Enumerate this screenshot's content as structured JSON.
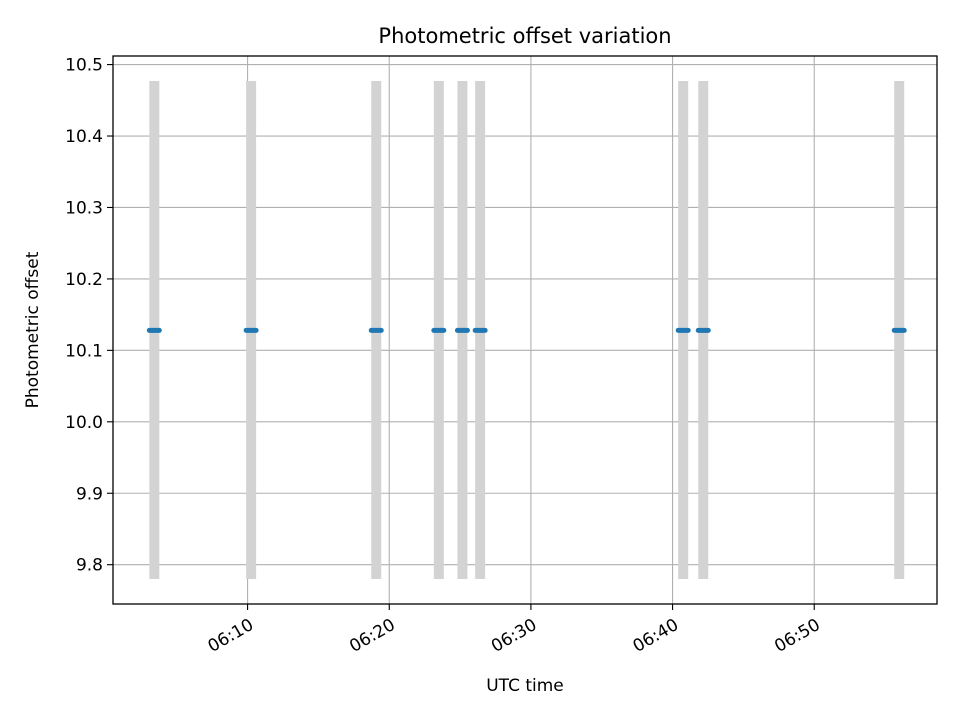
{
  "chart_data": {
    "type": "scatter",
    "title": "Photometric offset variation",
    "xlabel": "UTC time",
    "ylabel": "Photometric offset",
    "x_type": "time",
    "xlim": [
      "06:00:30",
      "06:58:40"
    ],
    "ylim": [
      9.745,
      10.512
    ],
    "grid": true,
    "x_ticks": [
      "06:10",
      "06:20",
      "06:30",
      "06:40",
      "06:50"
    ],
    "y_ticks": [
      "9.8",
      "9.9",
      "10.0",
      "10.1",
      "10.2",
      "10.3",
      "10.4",
      "10.5"
    ],
    "colors": {
      "points": "#1f77b4",
      "error_bars": "#d3d3d3",
      "grid": "#b0b0b0"
    },
    "points": [
      {
        "x": "06:03:25",
        "y": 10.128,
        "y_low": 9.78,
        "y_high": 10.477
      },
      {
        "x": "06:10:15",
        "y": 10.128,
        "y_low": 9.78,
        "y_high": 10.477
      },
      {
        "x": "06:19:05",
        "y": 10.128,
        "y_low": 9.78,
        "y_high": 10.477
      },
      {
        "x": "06:23:30",
        "y": 10.128,
        "y_low": 9.78,
        "y_high": 10.477
      },
      {
        "x": "06:25:10",
        "y": 10.128,
        "y_low": 9.78,
        "y_high": 10.477
      },
      {
        "x": "06:26:25",
        "y": 10.128,
        "y_low": 9.78,
        "y_high": 10.477
      },
      {
        "x": "06:40:45",
        "y": 10.128,
        "y_low": 9.78,
        "y_high": 10.477
      },
      {
        "x": "06:42:10",
        "y": 10.128,
        "y_low": 9.78,
        "y_high": 10.477
      },
      {
        "x": "06:56:00",
        "y": 10.128,
        "y_low": 9.78,
        "y_high": 10.477
      }
    ]
  }
}
